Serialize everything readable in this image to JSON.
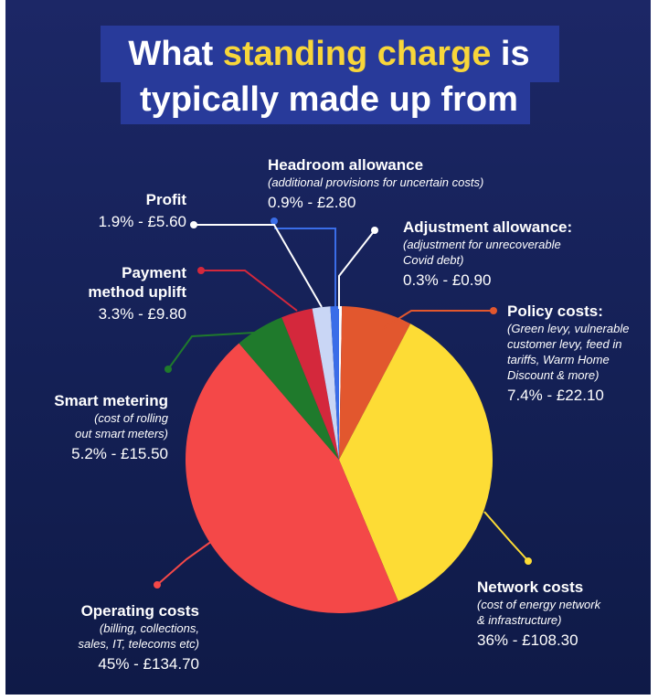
{
  "title": {
    "pre": "What ",
    "highlight": "standing charge",
    "post": " is",
    "line2": "typically made up from"
  },
  "colors": {
    "background": "#172260",
    "title_highlight": "#f8d63a",
    "title_box": "#283a9a"
  },
  "chart_data": {
    "type": "pie",
    "start_angle_deg": 0,
    "direction": "clockwise",
    "slices": [
      {
        "label": "Adjustment allowance:",
        "note": "(adjustment for unrecoverable Covid debt)",
        "percent": 0.3,
        "amount": "£0.90",
        "display": "0.3% - £0.90",
        "color": "#ffffff"
      },
      {
        "label": "Policy costs:",
        "note": "(Green levy, vulnerable customer levy, feed in tariffs, Warm Home Discount & more)",
        "percent": 7.4,
        "amount": "£22.10",
        "display": "7.4% - £22.10",
        "color": "#e2572e"
      },
      {
        "label": "Network costs",
        "note": "(cost of energy network & infrastructure)",
        "percent": 36,
        "amount": "£108.30",
        "display": "36% - £108.30",
        "color": "#fddc35"
      },
      {
        "label": "Operating costs",
        "note": "(billing, collections, sales, IT, telecoms etc)",
        "percent": 45,
        "amount": "£134.70",
        "display": "45% - £134.70",
        "color": "#f44848"
      },
      {
        "label": "Smart metering",
        "note": "(cost of rolling out smart meters)",
        "percent": 5.2,
        "amount": "£15.50",
        "display": "5.2% - £15.50",
        "color": "#1f7a2c"
      },
      {
        "label": "Payment method uplift",
        "note": "",
        "percent": 3.3,
        "amount": "£9.80",
        "display": "3.3% - £9.80",
        "color": "#d4283c"
      },
      {
        "label": "Profit",
        "note": "",
        "percent": 1.9,
        "amount": "£5.60",
        "display": "1.9% - £5.60",
        "color": "#c9d6f5"
      },
      {
        "label": "Headroom allowance",
        "note": "(additional provisions for uncertain costs)",
        "percent": 0.9,
        "amount": "£2.80",
        "display": "0.9% - £2.80",
        "color": "#3a6de8"
      }
    ]
  },
  "labels": {
    "headroom": {
      "name": "Headroom allowance",
      "sub": "(additional provisions for uncertain costs)",
      "val": "0.9% - £2.80"
    },
    "profit": {
      "name": "Profit",
      "val": "1.9% - £5.60"
    },
    "adjustment": {
      "name": "Adjustment allowance:",
      "sub1": "(adjustment for unrecoverable",
      "sub2": "Covid debt)",
      "val": "0.3% - £0.90"
    },
    "payment": {
      "name1": "Payment",
      "name2": "method uplift",
      "val": "3.3% - £9.80"
    },
    "policy": {
      "name": "Policy costs:",
      "sub1": "(Green levy, vulnerable",
      "sub2": "customer levy, feed in",
      "sub3": "tariffs, Warm Home",
      "sub4": "Discount & more)",
      "val": "7.4% - £22.10"
    },
    "smart": {
      "name": "Smart metering",
      "sub1": "(cost of rolling",
      "sub2": "out smart meters)",
      "val": "5.2% - £15.50"
    },
    "network": {
      "name": "Network costs",
      "sub1": "(cost of energy network",
      "sub2": "& infrastructure)",
      "val": "36% - £108.30"
    },
    "operating": {
      "name": "Operating costs",
      "sub1": "(billing, collections,",
      "sub2": "sales, IT, telecoms etc)",
      "val": "45% - £134.70"
    }
  }
}
